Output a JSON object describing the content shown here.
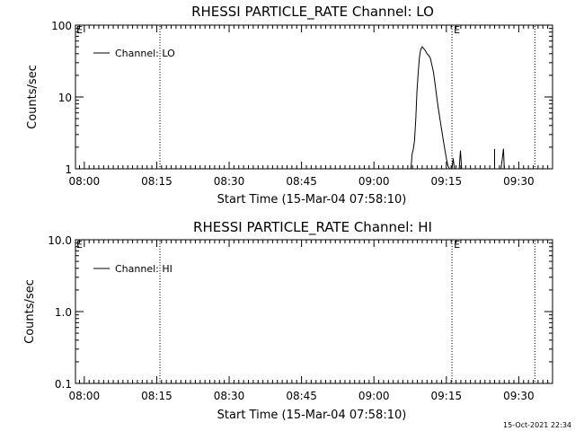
{
  "footer": {
    "timestamp": "15-Oct-2021 22:34"
  },
  "chart_data": [
    {
      "type": "line",
      "title": "RHESSI PARTICLE_RATE Channel: LO",
      "xlabel": "Start Time (15-Mar-04 07:58:10)",
      "ylabel": "Counts/sec",
      "yscale": "log",
      "xlim": [
        "07:58:10",
        "09:37:00"
      ],
      "ylim": [
        1,
        100
      ],
      "x_ticks": [
        "08:00",
        "08:15",
        "08:30",
        "08:45",
        "09:00",
        "09:15",
        "09:30"
      ],
      "y_ticks": [
        "1",
        "10",
        "100"
      ],
      "legend": {
        "placement": "top-left",
        "entries": [
          "Channel: LO"
        ]
      },
      "event_markers": [
        {
          "time": "08:15:40",
          "label": ""
        },
        {
          "time": "09:16:10",
          "label": "E"
        },
        {
          "time": "09:33:20",
          "label": ""
        }
      ],
      "left_edge_label": "E",
      "series": [
        {
          "name": "Channel: LO",
          "segments": [
            [
              [
                "09:07:40",
                1.0
              ],
              [
                "09:07:55",
                1.6
              ],
              [
                "09:08:10",
                1.9
              ],
              [
                "09:08:25",
                2.5
              ],
              [
                "09:08:40",
                5.0
              ],
              [
                "09:08:55",
                12.0
              ],
              [
                "09:09:10",
                22.0
              ],
              [
                "09:09:25",
                35.0
              ],
              [
                "09:09:40",
                45.0
              ],
              [
                "09:10:00",
                50.0
              ],
              [
                "09:10:20",
                47.0
              ],
              [
                "09:10:40",
                44.0
              ],
              [
                "09:11:00",
                40.0
              ],
              [
                "09:11:20",
                38.0
              ],
              [
                "09:11:40",
                35.0
              ],
              [
                "09:12:00",
                28.0
              ],
              [
                "09:12:20",
                22.0
              ],
              [
                "09:12:40",
                15.0
              ],
              [
                "09:13:00",
                10.0
              ],
              [
                "09:13:20",
                7.0
              ],
              [
                "09:13:40",
                5.0
              ],
              [
                "09:14:00",
                3.6
              ],
              [
                "09:14:20",
                2.6
              ],
              [
                "09:14:40",
                1.9
              ],
              [
                "09:15:00",
                1.4
              ],
              [
                "09:15:20",
                1.1
              ],
              [
                "09:15:40",
                1.0
              ]
            ],
            [
              [
                "09:16:10",
                1.0
              ],
              [
                "09:16:25",
                1.4
              ],
              [
                "09:16:40",
                1.0
              ]
            ],
            [
              [
                "09:17:40",
                1.0
              ],
              [
                "09:17:55",
                1.8
              ],
              [
                "09:18:10",
                1.0
              ]
            ],
            [
              [
                "09:25:00",
                1.9
              ],
              [
                "09:25:00",
                1.0
              ]
            ],
            [
              [
                "09:26:20",
                1.0
              ],
              [
                "09:26:50",
                1.9
              ],
              [
                "09:27:00",
                1.0
              ]
            ]
          ]
        }
      ]
    },
    {
      "type": "line",
      "title": "RHESSI PARTICLE_RATE Channel: HI",
      "xlabel": "Start Time (15-Mar-04 07:58:10)",
      "ylabel": "Counts/sec",
      "yscale": "log",
      "xlim": [
        "07:58:10",
        "09:37:00"
      ],
      "ylim": [
        0.1,
        10
      ],
      "x_ticks": [
        "08:00",
        "08:15",
        "08:30",
        "08:45",
        "09:00",
        "09:15",
        "09:30"
      ],
      "y_ticks": [
        "0.1",
        "1.0",
        "10.0"
      ],
      "legend": {
        "placement": "top-left",
        "entries": [
          "Channel: HI"
        ]
      },
      "event_markers": [
        {
          "time": "08:15:40",
          "label": ""
        },
        {
          "time": "09:16:10",
          "label": "E"
        },
        {
          "time": "09:33:20",
          "label": ""
        }
      ],
      "left_edge_label": "E",
      "series": [
        {
          "name": "Channel: HI",
          "segments": []
        }
      ]
    }
  ]
}
